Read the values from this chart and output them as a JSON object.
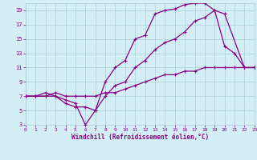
{
  "bg_color": "#d4eef5",
  "grid_color": "#aacfdc",
  "line_color": "#880088",
  "xlabel": "Windchill (Refroidissement éolien,°C)",
  "xmin": 0,
  "xmax": 23,
  "ymin": 3,
  "ymax": 20,
  "yticks": [
    3,
    5,
    7,
    9,
    11,
    13,
    15,
    17,
    19
  ],
  "xticks": [
    0,
    1,
    2,
    3,
    4,
    5,
    6,
    7,
    8,
    9,
    10,
    11,
    12,
    13,
    14,
    15,
    16,
    17,
    18,
    19,
    20,
    21,
    22,
    23
  ],
  "line1_x": [
    0,
    1,
    2,
    3,
    4,
    5,
    6,
    7,
    8,
    9,
    10,
    11,
    12,
    13,
    14,
    15,
    16,
    17,
    18,
    19,
    20,
    21,
    22,
    23
  ],
  "line1_y": [
    7,
    7,
    7,
    7,
    6.5,
    6,
    3,
    5,
    9,
    11,
    12,
    15,
    15.5,
    18.5,
    19,
    19.2,
    19.8,
    20,
    20,
    19,
    14,
    13,
    11,
    11
  ],
  "line2_x": [
    0,
    1,
    2,
    3,
    4,
    5,
    6,
    7,
    8,
    9,
    10,
    11,
    12,
    13,
    14,
    15,
    16,
    17,
    18,
    19,
    20,
    22,
    23
  ],
  "line2_y": [
    7,
    7,
    7.5,
    7,
    6,
    5.5,
    5.5,
    5,
    7,
    8.5,
    9,
    11,
    12,
    13.5,
    14.5,
    15,
    16,
    17.5,
    18,
    19,
    18.5,
    11,
    11
  ],
  "line3_x": [
    0,
    1,
    2,
    3,
    4,
    5,
    6,
    7,
    8,
    9,
    10,
    11,
    12,
    13,
    14,
    15,
    16,
    17,
    18,
    19,
    20,
    21,
    22,
    23
  ],
  "line3_y": [
    7,
    7,
    7,
    7.5,
    7,
    7,
    7,
    7,
    7.5,
    7.5,
    8,
    8.5,
    9,
    9.5,
    10,
    10,
    10.5,
    10.5,
    11,
    11,
    11,
    11,
    11,
    11
  ]
}
